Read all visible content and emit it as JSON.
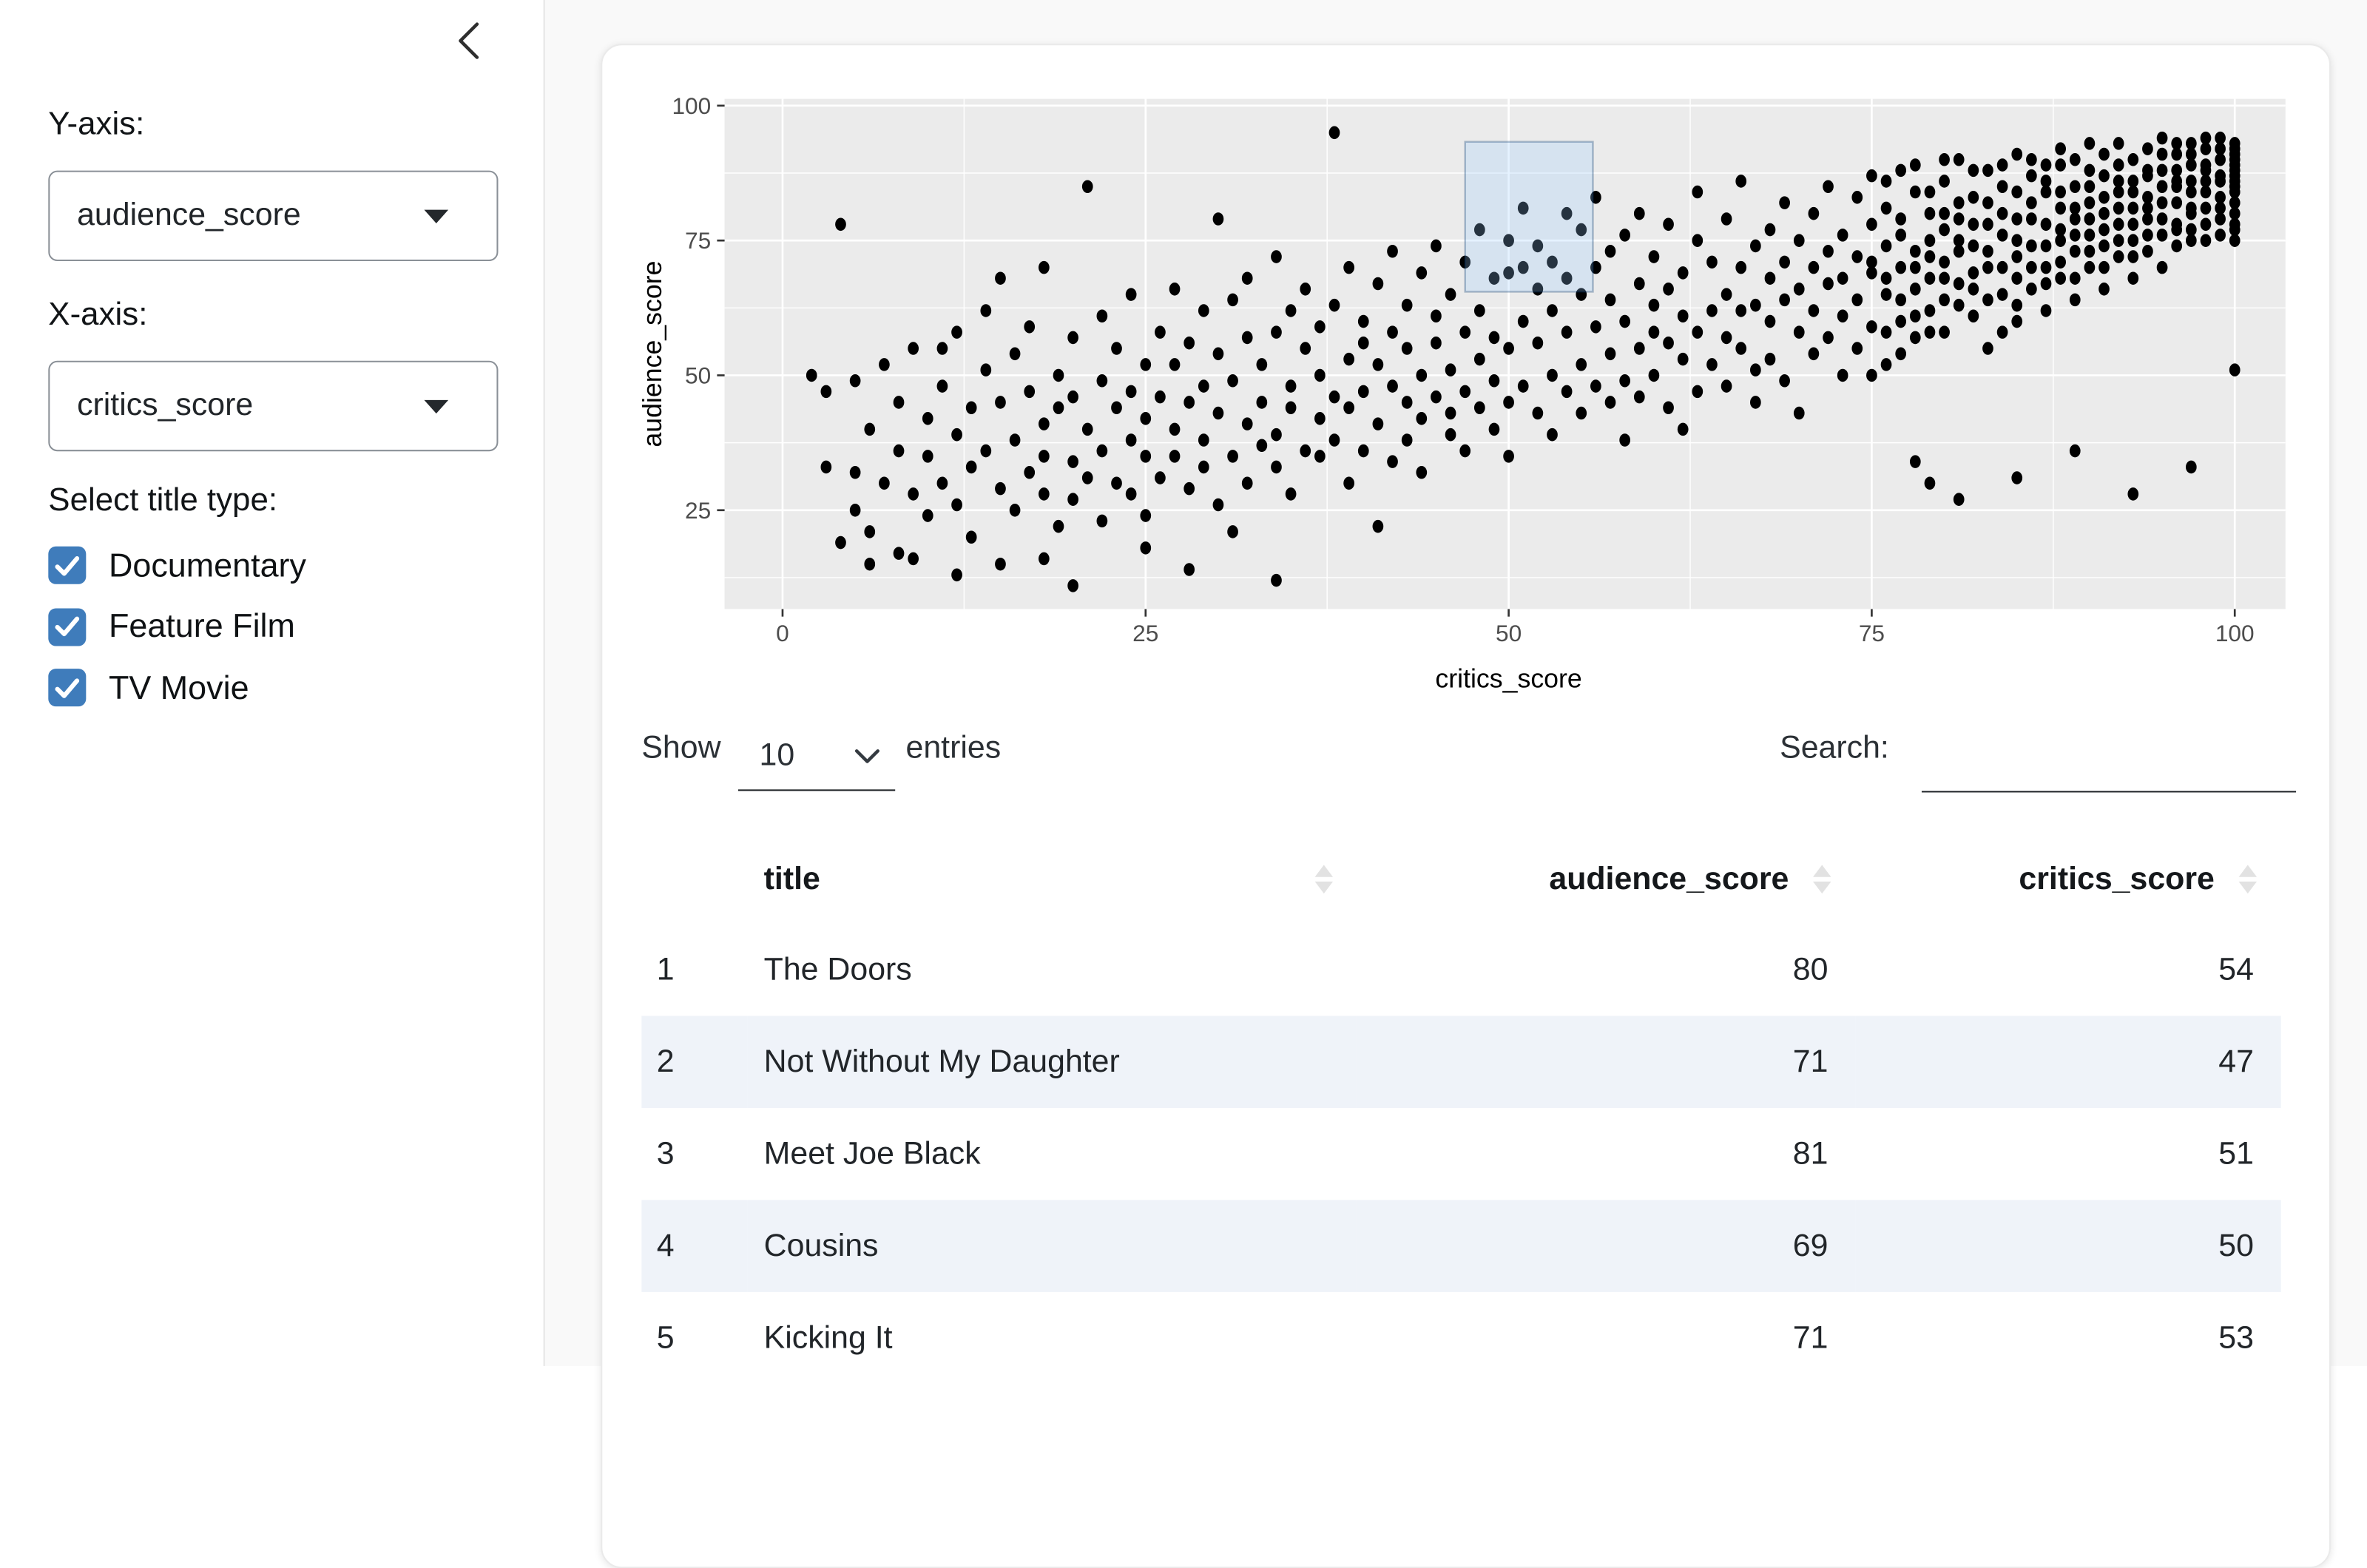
{
  "sidebar": {
    "collapse_icon": "chevron-left",
    "y_axis_label": "Y-axis:",
    "y_axis_value": "audience_score",
    "x_axis_label": "X-axis:",
    "x_axis_value": "critics_score",
    "title_type_label": "Select title type:",
    "title_types": [
      {
        "label": "Documentary",
        "checked": true
      },
      {
        "label": "Feature Film",
        "checked": true
      },
      {
        "label": "TV Movie",
        "checked": true
      }
    ],
    "checkbox_color": "#3f7cbb"
  },
  "chart_data": {
    "type": "scatter",
    "title": "",
    "xlabel": "critics_score",
    "ylabel": "audience_score",
    "x_ticks": [
      0,
      25,
      50,
      75,
      100
    ],
    "y_ticks": [
      25,
      50,
      75,
      100
    ],
    "xlim": [
      -4,
      104
    ],
    "ylim": [
      6.7,
      101.3
    ],
    "grid": "major and minor, white on gray panel",
    "legend": "none",
    "panel_bg": "#ebebeb",
    "grid_color": "#ffffff",
    "point_color": "#000000",
    "tick_label_color": "#4d4d4d",
    "brush": {
      "x_min": 47,
      "x_max": 55.8,
      "y_min": 65.5,
      "y_max": 93.3,
      "fill": "rgba(153,204,255,0.25)",
      "stroke": "rgba(0,51,102,0.3)"
    },
    "points_by_x": [
      [
        2,
        [
          50
        ]
      ],
      [
        3,
        [
          33,
          47
        ]
      ],
      [
        4,
        [
          78,
          19
        ]
      ],
      [
        5,
        [
          25,
          49,
          32
        ]
      ],
      [
        6,
        [
          40,
          21,
          15
        ]
      ],
      [
        7,
        [
          52,
          30
        ]
      ],
      [
        8,
        [
          36,
          45,
          17
        ]
      ],
      [
        9,
        [
          55,
          28,
          16
        ]
      ],
      [
        10,
        [
          42,
          35,
          24
        ]
      ],
      [
        11,
        [
          48,
          30,
          55
        ]
      ],
      [
        12,
        [
          39,
          26,
          58,
          13
        ]
      ],
      [
        13,
        [
          44,
          33,
          20
        ]
      ],
      [
        14,
        [
          51,
          36,
          62
        ]
      ],
      [
        15,
        [
          29,
          45,
          15,
          68
        ]
      ],
      [
        16,
        [
          38,
          54,
          25
        ]
      ],
      [
        17,
        [
          47,
          32,
          59
        ]
      ],
      [
        18,
        [
          41,
          28,
          35,
          70,
          16
        ]
      ],
      [
        19,
        [
          50,
          22,
          44
        ]
      ],
      [
        20,
        [
          34,
          57,
          27,
          46,
          11
        ]
      ],
      [
        21,
        [
          85,
          40,
          31
        ]
      ],
      [
        22,
        [
          49,
          36,
          23,
          61
        ]
      ],
      [
        23,
        [
          44,
          55,
          30
        ]
      ],
      [
        24,
        [
          38,
          65,
          28,
          47
        ]
      ],
      [
        25,
        [
          52,
          35,
          42,
          24,
          18
        ]
      ],
      [
        26,
        [
          58,
          31,
          46
        ]
      ],
      [
        27,
        [
          40,
          66,
          35,
          52
        ]
      ],
      [
        28,
        [
          45,
          29,
          56,
          14
        ]
      ],
      [
        29,
        [
          62,
          38,
          48,
          33
        ]
      ],
      [
        30,
        [
          79,
          43,
          54,
          26
        ]
      ],
      [
        31,
        [
          49,
          35,
          64,
          21
        ]
      ],
      [
        32,
        [
          57,
          41,
          30,
          68
        ]
      ],
      [
        33,
        [
          45,
          52,
          37
        ]
      ],
      [
        34,
        [
          72,
          39,
          58,
          33,
          12
        ]
      ],
      [
        35,
        [
          48,
          62,
          44,
          28
        ]
      ],
      [
        36,
        [
          55,
          36,
          66
        ]
      ],
      [
        37,
        [
          42,
          59,
          50,
          35
        ]
      ],
      [
        38,
        [
          95,
          46,
          63,
          38
        ]
      ],
      [
        39,
        [
          53,
          30,
          70,
          44
        ]
      ],
      [
        40,
        [
          60,
          47,
          36,
          56
        ]
      ],
      [
        41,
        [
          67,
          41,
          52,
          22
        ]
      ],
      [
        42,
        [
          58,
          34,
          73,
          48
        ]
      ],
      [
        43,
        [
          63,
          45,
          55,
          38
        ]
      ],
      [
        44,
        [
          50,
          69,
          42,
          32
        ]
      ],
      [
        45,
        [
          74,
          56,
          46,
          61
        ]
      ],
      [
        46,
        [
          39,
          65,
          51,
          43
        ]
      ],
      [
        47,
        [
          71,
          47,
          58,
          36
        ]
      ],
      [
        48,
        [
          62,
          53,
          44,
          77
        ]
      ],
      [
        49,
        [
          68,
          40,
          57,
          49
        ]
      ],
      [
        50,
        [
          69,
          45,
          75,
          55,
          35
        ]
      ],
      [
        51,
        [
          81,
          60,
          48,
          70
        ]
      ],
      [
        52,
        [
          56,
          43,
          66,
          74
        ]
      ],
      [
        53,
        [
          71,
          50,
          62,
          39
        ]
      ],
      [
        54,
        [
          80,
          58,
          47,
          68
        ]
      ],
      [
        55,
        [
          65,
          77,
          52,
          43
        ]
      ],
      [
        56,
        [
          59,
          70,
          48,
          83
        ]
      ],
      [
        57,
        [
          64,
          54,
          73,
          45
        ]
      ],
      [
        58,
        [
          76,
          49,
          60,
          38
        ]
      ],
      [
        59,
        [
          67,
          55,
          80,
          46
        ]
      ],
      [
        60,
        [
          58,
          72,
          50,
          63
        ]
      ],
      [
        61,
        [
          44,
          66,
          78,
          56
        ]
      ],
      [
        62,
        [
          69,
          53,
          61,
          40
        ]
      ],
      [
        63,
        [
          75,
          58,
          47,
          84
        ]
      ],
      [
        64,
        [
          62,
          71,
          52
        ]
      ],
      [
        65,
        [
          79,
          48,
          65,
          57
        ]
      ],
      [
        66,
        [
          70,
          55,
          86,
          62
        ]
      ],
      [
        67,
        [
          51,
          74,
          63,
          45
        ]
      ],
      [
        68,
        [
          77,
          60,
          68,
          53
        ]
      ],
      [
        69,
        [
          64,
          82,
          49,
          71
        ]
      ],
      [
        70,
        [
          58,
          75,
          66,
          43
        ]
      ],
      [
        71,
        [
          80,
          62,
          70,
          54
        ]
      ],
      [
        72,
        [
          67,
          85,
          57,
          73
        ]
      ],
      [
        73,
        [
          61,
          76,
          50,
          68
        ]
      ],
      [
        74,
        [
          83,
          64,
          72,
          55
        ]
      ],
      [
        75,
        [
          69,
          78,
          59,
          87,
          50,
          71
        ]
      ],
      [
        76,
        [
          65,
          74,
          52,
          81,
          68,
          58,
          86
        ]
      ],
      [
        77,
        [
          70,
          60,
          88,
          76,
          64,
          79,
          54
        ]
      ],
      [
        78,
        [
          84,
          66,
          73,
          57,
          70,
          61,
          89,
          34
        ]
      ],
      [
        79,
        [
          75,
          62,
          80,
          68,
          72,
          84,
          58,
          30
        ]
      ],
      [
        80,
        [
          71,
          86,
          58,
          77,
          64,
          80,
          68,
          90
        ]
      ],
      [
        81,
        [
          79,
          67,
          90,
          73,
          63,
          82,
          75,
          27
        ]
      ],
      [
        82,
        [
          74,
          83,
          61,
          69,
          78,
          66,
          88
        ]
      ],
      [
        83,
        [
          88,
          70,
          78,
          55,
          73,
          82,
          64
        ]
      ],
      [
        84,
        [
          76,
          85,
          65,
          80,
          70,
          89,
          58
        ]
      ],
      [
        85,
        [
          72,
          91,
          68,
          79,
          60,
          84,
          75,
          63,
          31
        ]
      ],
      [
        86,
        [
          82,
          74,
          87,
          66,
          79,
          90,
          70
        ]
      ],
      [
        87,
        [
          78,
          89,
          70,
          84,
          62,
          74,
          86,
          67
        ]
      ],
      [
        88,
        [
          75,
          81,
          92,
          68,
          84,
          77,
          71,
          89
        ]
      ],
      [
        89,
        [
          85,
          73,
          79,
          64,
          90,
          81,
          68,
          76,
          36
        ]
      ],
      [
        90,
        [
          88,
          76,
          82,
          70,
          93,
          85,
          79,
          73
        ]
      ],
      [
        91,
        [
          80,
          87,
          74,
          66,
          91,
          83,
          77,
          70
        ]
      ],
      [
        92,
        [
          84,
          78,
          89,
          72,
          86,
          81,
          75,
          93
        ]
      ],
      [
        93,
        [
          81,
          90,
          75,
          86,
          68,
          78,
          84,
          72,
          28
        ]
      ],
      [
        94,
        [
          87,
          79,
          92,
          73,
          83,
          88,
          76,
          81
        ]
      ],
      [
        95,
        [
          76,
          88,
          82,
          94,
          70,
          85,
          79,
          91
        ]
      ],
      [
        96,
        [
          85,
          91,
          78,
          86,
          74,
          82,
          88,
          77,
          93
        ]
      ],
      [
        97,
        [
          89,
          80,
          93,
          84,
          77,
          86,
          81,
          91,
          75,
          33
        ]
      ],
      [
        98,
        [
          86,
          92,
          81,
          88,
          75,
          84,
          89,
          78,
          94
        ]
      ],
      [
        99,
        [
          90,
          83,
          87,
          79,
          94,
          86,
          81,
          92,
          76
        ]
      ],
      [
        100,
        [
          91,
          84,
          88,
          77,
          93,
          86,
          80,
          51,
          89,
          82,
          87,
          75,
          92,
          78,
          85,
          90
        ]
      ]
    ]
  },
  "table": {
    "show_label": "Show",
    "page_length": "10",
    "entries_label": "entries",
    "search_label": "Search:",
    "search_value": "",
    "columns": [
      "title",
      "audience_score",
      "critics_score"
    ],
    "rows": [
      {
        "n": "1",
        "title": "The Doors",
        "audience_score": "80",
        "critics_score": "54"
      },
      {
        "n": "2",
        "title": "Not Without My Daughter",
        "audience_score": "71",
        "critics_score": "47"
      },
      {
        "n": "3",
        "title": "Meet Joe Black",
        "audience_score": "81",
        "critics_score": "51"
      },
      {
        "n": "4",
        "title": "Cousins",
        "audience_score": "69",
        "critics_score": "50"
      },
      {
        "n": "5",
        "title": "Kicking It",
        "audience_score": "71",
        "critics_score": "53"
      }
    ],
    "stripe_color": "#eff3f9"
  }
}
